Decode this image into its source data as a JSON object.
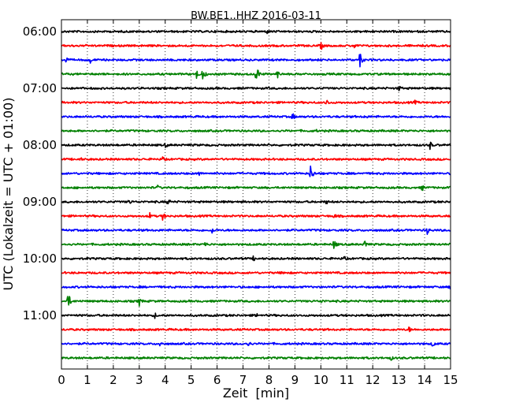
{
  "chart_data": {
    "type": "line",
    "title": "BW.BE1..HHZ 2016-03-11",
    "xlabel": "Zeit  [min]",
    "ylabel": "UTC (Lokalzeit = UTC + 01:00)",
    "xlim": [
      0,
      15
    ],
    "xticks": [
      "0",
      "1",
      "2",
      "3",
      "4",
      "5",
      "6",
      "7",
      "8",
      "9",
      "10",
      "11",
      "12",
      "13",
      "14",
      "15"
    ],
    "yticks": [
      "06:00",
      "07:00",
      "08:00",
      "09:00",
      "10:00",
      "11:00"
    ],
    "grid": true,
    "trace_colors": [
      "#000000",
      "#ff0000",
      "#0000ff",
      "#008000"
    ],
    "traces": [
      {
        "start": "06:00",
        "color": "#000000",
        "events": [
          {
            "t": 7.9,
            "amp": 0.3
          }
        ]
      },
      {
        "start": "06:15",
        "color": "#ff0000",
        "events": [
          {
            "t": 10.0,
            "amp": 0.45
          },
          {
            "t": 11.3,
            "amp": 0.3
          }
        ]
      },
      {
        "start": "06:30",
        "color": "#0000ff",
        "events": [
          {
            "t": 0.15,
            "amp": 0.4
          },
          {
            "t": 1.1,
            "amp": 0.35
          },
          {
            "t": 11.5,
            "amp": 0.7
          }
        ]
      },
      {
        "start": "06:45",
        "color": "#008000",
        "events": [
          {
            "t": 5.2,
            "amp": 0.5
          },
          {
            "t": 5.45,
            "amp": 0.6
          },
          {
            "t": 7.5,
            "amp": 0.9
          },
          {
            "t": 8.3,
            "amp": 0.5
          }
        ]
      },
      {
        "start": "07:00",
        "color": "#000000",
        "events": [
          {
            "t": 13.0,
            "amp": 0.35
          }
        ]
      },
      {
        "start": "07:15",
        "color": "#ff0000",
        "events": [
          {
            "t": 10.2,
            "amp": 0.4
          },
          {
            "t": 13.6,
            "amp": 0.3
          }
        ]
      },
      {
        "start": "07:30",
        "color": "#0000ff",
        "events": [
          {
            "t": 8.9,
            "amp": 0.4
          },
          {
            "t": 11.7,
            "amp": 0.3
          }
        ]
      },
      {
        "start": "07:45",
        "color": "#008000",
        "events": [
          {
            "t": 9.8,
            "amp": 0.2
          }
        ]
      },
      {
        "start": "08:00",
        "color": "#000000",
        "events": [
          {
            "t": 4.0,
            "amp": 0.3
          },
          {
            "t": 14.2,
            "amp": 0.45
          }
        ]
      },
      {
        "start": "08:15",
        "color": "#ff0000",
        "events": [
          {
            "t": 0.7,
            "amp": 0.3
          },
          {
            "t": 3.9,
            "amp": 0.3
          }
        ]
      },
      {
        "start": "08:30",
        "color": "#0000ff",
        "events": [
          {
            "t": 5.3,
            "amp": 0.3
          },
          {
            "t": 9.6,
            "amp": 0.8
          }
        ]
      },
      {
        "start": "08:45",
        "color": "#008000",
        "events": [
          {
            "t": 3.7,
            "amp": 0.3
          },
          {
            "t": 13.9,
            "amp": 0.35
          }
        ]
      },
      {
        "start": "09:00",
        "color": "#000000",
        "events": [
          {
            "t": 2.6,
            "amp": 0.35
          },
          {
            "t": 4.1,
            "amp": 0.4
          },
          {
            "t": 10.2,
            "amp": 0.3
          }
        ]
      },
      {
        "start": "09:15",
        "color": "#ff0000",
        "events": [
          {
            "t": 3.4,
            "amp": 0.35
          },
          {
            "t": 3.9,
            "amp": 0.4
          },
          {
            "t": 10.5,
            "amp": 0.3
          }
        ]
      },
      {
        "start": "09:30",
        "color": "#0000ff",
        "events": [
          {
            "t": 5.8,
            "amp": 0.35
          },
          {
            "t": 14.1,
            "amp": 0.4
          }
        ]
      },
      {
        "start": "09:45",
        "color": "#008000",
        "events": [
          {
            "t": 5.5,
            "amp": 0.4
          },
          {
            "t": 10.5,
            "amp": 0.55
          },
          {
            "t": 11.7,
            "amp": 0.45
          }
        ]
      },
      {
        "start": "10:00",
        "color": "#000000",
        "events": [
          {
            "t": 7.4,
            "amp": 0.3
          },
          {
            "t": 10.9,
            "amp": 0.3
          }
        ]
      },
      {
        "start": "10:15",
        "color": "#ff0000",
        "events": [
          {
            "t": 8.5,
            "amp": 0.3
          }
        ]
      },
      {
        "start": "10:30",
        "color": "#0000ff",
        "events": [
          {
            "t": 14.95,
            "amp": 0.3
          }
        ]
      },
      {
        "start": "10:45",
        "color": "#008000",
        "events": [
          {
            "t": 0.25,
            "amp": 0.8
          },
          {
            "t": 3.0,
            "amp": 0.5
          },
          {
            "t": 10.0,
            "amp": 0.3
          }
        ]
      },
      {
        "start": "11:00",
        "color": "#000000",
        "events": [
          {
            "t": 3.6,
            "amp": 0.3
          },
          {
            "t": 7.5,
            "amp": 0.3
          }
        ]
      },
      {
        "start": "11:15",
        "color": "#ff0000",
        "events": [
          {
            "t": 13.4,
            "amp": 0.3
          }
        ]
      },
      {
        "start": "11:30",
        "color": "#0000ff",
        "events": [
          {
            "t": 3.8,
            "amp": 0.3
          },
          {
            "t": 7.2,
            "amp": 0.35
          },
          {
            "t": 14.3,
            "amp": 0.4
          }
        ]
      },
      {
        "start": "11:45",
        "color": "#008000",
        "events": [
          {
            "t": 12.7,
            "amp": 0.25
          }
        ]
      }
    ]
  }
}
